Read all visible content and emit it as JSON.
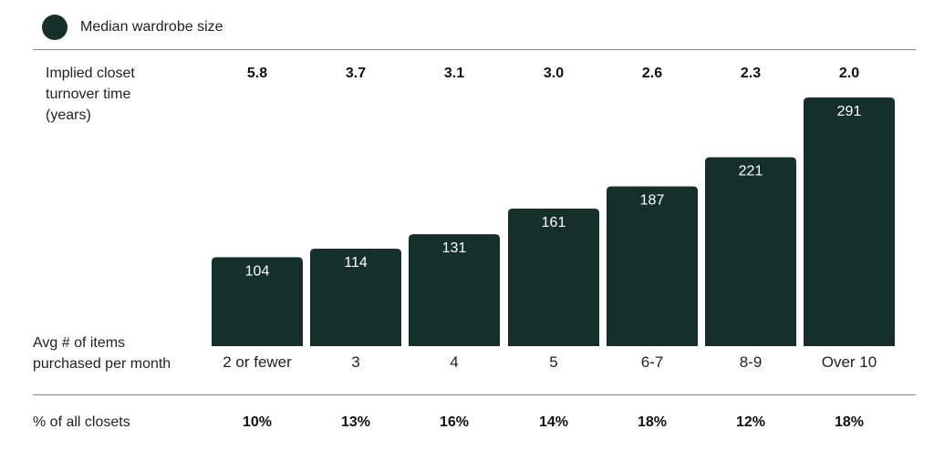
{
  "legend": {
    "label": "Median wardrobe size",
    "color": "#15302a"
  },
  "rows": {
    "turnover_label": "Implied closet turnover time (years)",
    "turnover_lines": [
      "Implied closet",
      "turnover time",
      "(years)"
    ],
    "items_label_lines": [
      "Avg # of items",
      "purchased per month"
    ],
    "pct_label": "% of all closets"
  },
  "chart_data": {
    "type": "bar",
    "categories": [
      "2 or fewer",
      "3",
      "4",
      "5",
      "6-7",
      "8-9",
      "Over 10"
    ],
    "series": [
      {
        "name": "Median wardrobe size",
        "values": [
          104,
          114,
          131,
          161,
          187,
          221,
          291
        ]
      }
    ],
    "turnover_years": [
      "5.8",
      "3.7",
      "3.1",
      "3.0",
      "2.6",
      "2.3",
      "2.0"
    ],
    "pct_of_closets": [
      "10%",
      "13%",
      "16%",
      "14%",
      "18%",
      "12%",
      "18%"
    ],
    "xlabel": "Avg # of items purchased per month",
    "ylabel": "",
    "bar_color": "#15302a"
  }
}
